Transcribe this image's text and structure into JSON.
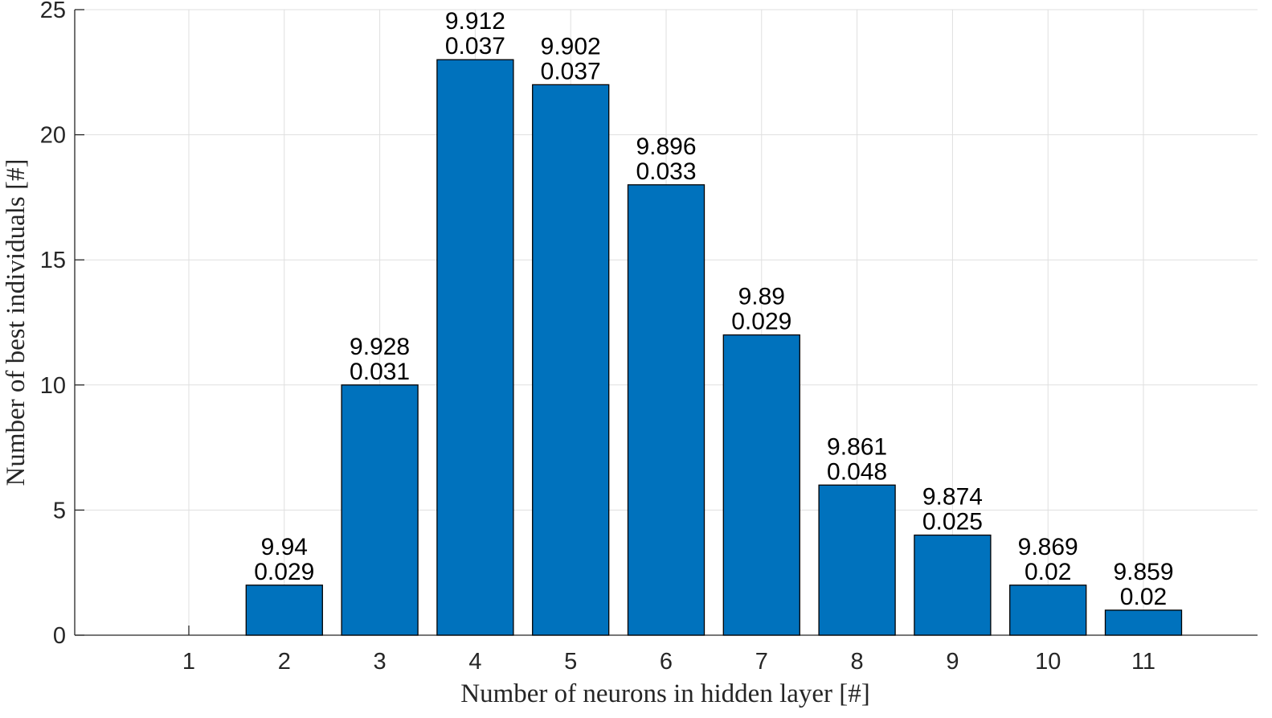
{
  "chart_data": {
    "type": "bar",
    "categories": [
      "1",
      "2",
      "3",
      "4",
      "5",
      "6",
      "7",
      "8",
      "9",
      "10",
      "11"
    ],
    "values": [
      0,
      2,
      10,
      23,
      22,
      18,
      12,
      6,
      4,
      2,
      1
    ],
    "data_labels": [
      null,
      [
        "9.94",
        "0.029"
      ],
      [
        "9.928",
        "0.031"
      ],
      [
        "9.912",
        "0.037"
      ],
      [
        "9.902",
        "0.037"
      ],
      [
        "9.896",
        "0.033"
      ],
      [
        "9.89",
        "0.029"
      ],
      [
        "9.861",
        "0.048"
      ],
      [
        "9.874",
        "0.025"
      ],
      [
        "9.869",
        "0.02"
      ],
      [
        "9.859",
        "0.02"
      ]
    ],
    "xlabel": "Number of neurons in hidden layer [#]",
    "ylabel": "Number of best individuals [#]",
    "ylim": [
      0,
      25
    ],
    "yticks": [
      0,
      5,
      10,
      15,
      20,
      25
    ],
    "grid": true,
    "bar_color": "#0072BD"
  }
}
